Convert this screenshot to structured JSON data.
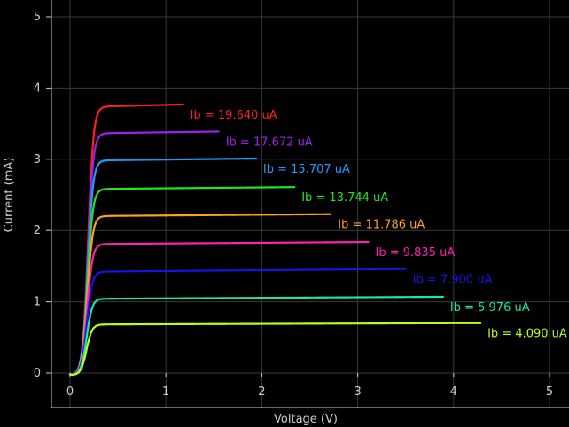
{
  "chart_data": {
    "type": "line",
    "xlabel": "Voltage (V)",
    "ylabel": "Current (mA)",
    "xlim": [
      0,
      5
    ],
    "ylim": [
      0,
      5
    ],
    "x_ticks": [
      0,
      1,
      2,
      3,
      4,
      5
    ],
    "y_ticks": [
      0,
      1,
      2,
      3,
      4,
      5
    ],
    "grid": true,
    "series": [
      {
        "name": "Ib = 19.640 uA",
        "color": "#ff1f1f",
        "x_end": 1.18,
        "y_sat": 3.73,
        "y_end": 3.77
      },
      {
        "name": "Ib = 17.672 uA",
        "color": "#a020f0",
        "x_end": 1.55,
        "y_sat": 3.36,
        "y_end": 3.39
      },
      {
        "name": "Ib = 15.707 uA",
        "color": "#1e9cff",
        "x_end": 1.94,
        "y_sat": 2.98,
        "y_end": 3.01
      },
      {
        "name": "Ib = 13.744 uA",
        "color": "#22e622",
        "x_end": 2.34,
        "y_sat": 2.58,
        "y_end": 2.61
      },
      {
        "name": "Ib = 11.786 uA",
        "color": "#ffa01e",
        "x_end": 2.72,
        "y_sat": 2.2,
        "y_end": 2.23
      },
      {
        "name": "Ib = 9.835 uA",
        "color": "#ff20b4",
        "x_end": 3.11,
        "y_sat": 1.81,
        "y_end": 1.84
      },
      {
        "name": "Ib = 7.900 uA",
        "color": "#1414e6",
        "x_end": 3.5,
        "y_sat": 1.42,
        "y_end": 1.46
      },
      {
        "name": "Ib = 5.976 uA",
        "color": "#1ee6a0",
        "x_end": 3.89,
        "y_sat": 1.04,
        "y_end": 1.07
      },
      {
        "name": "Ib = 4.090 uA",
        "color": "#b4ff1e",
        "x_end": 4.28,
        "y_sat": 0.68,
        "y_end": 0.7
      }
    ]
  }
}
